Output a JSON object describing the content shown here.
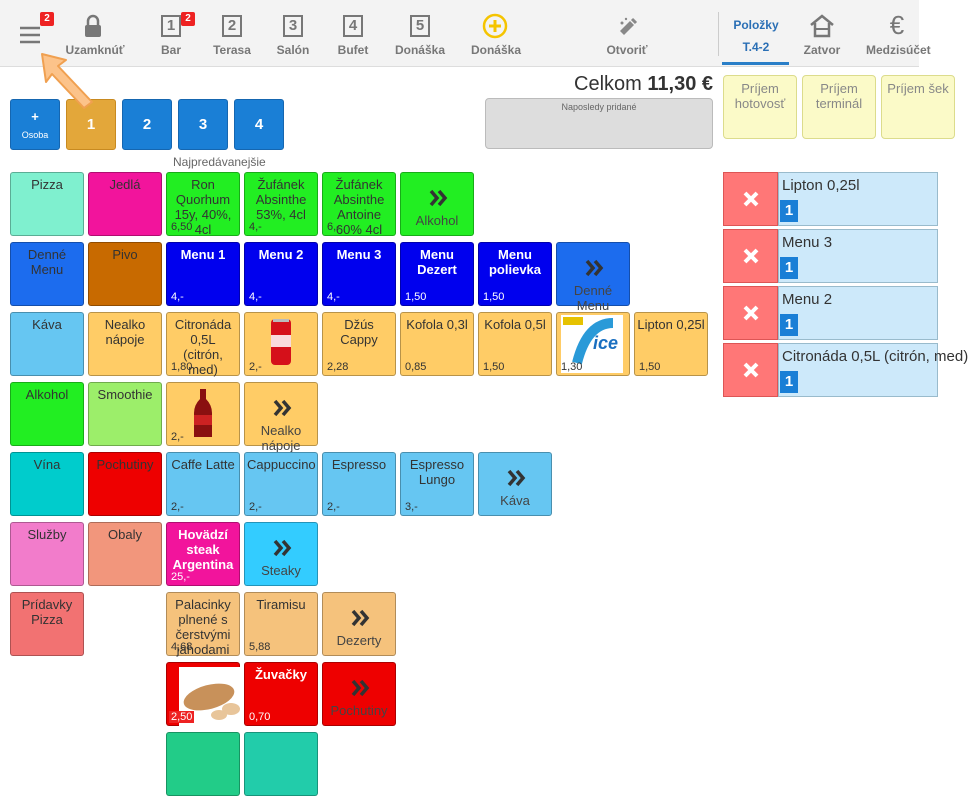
{
  "toolbar": {
    "menu_badge": "2",
    "lock": "Uzamknúť",
    "tables": [
      {
        "number": "1",
        "label": "Bar",
        "badge": "2"
      },
      {
        "number": "2",
        "label": "Terasa"
      },
      {
        "number": "3",
        "label": "Salón"
      },
      {
        "number": "4",
        "label": "Bufet"
      },
      {
        "number": "5",
        "label": "Donáška"
      }
    ],
    "add_delivery": "Donáška",
    "open": "Otvoriť",
    "tabs": [
      {
        "label": "Položky",
        "sub": "T.4-2"
      },
      {
        "label": "Zatvor"
      },
      {
        "label": "Medzisúčet"
      }
    ]
  },
  "total": {
    "label": "Celkom",
    "amount": "11,30 €"
  },
  "persons": {
    "add": "+",
    "add_label": "Osoba",
    "list": [
      "1",
      "2",
      "3",
      "4"
    ]
  },
  "last_added": "Naposledy pridané",
  "payments": [
    "Príjem hotovosť",
    "Príjem terminál",
    "Príjem šek"
  ],
  "section": "Najpredávanejšie",
  "grid": {
    "rows": [
      {
        "categories": [
          {
            "label": "Pizza",
            "color": "#7ff0cf"
          },
          {
            "label": "Jedlá",
            "color": "#f2149c"
          }
        ],
        "products": [
          {
            "label": "Ron Quorhum 15y, 40%, 4cl",
            "price": "6,50",
            "color": "#22ee22"
          },
          {
            "label": "Žufánek Absinthe 53%, 4cl",
            "price": "4,-",
            "color": "#22ee22"
          },
          {
            "label": "Žufánek Absinthe Antoine 60% 4cl",
            "price": "6,-",
            "color": "#22ee22"
          },
          {
            "label": "Alkohol",
            "color": "#22ee22",
            "more": true
          }
        ]
      },
      {
        "categories": [
          {
            "label": "Denné Menu",
            "color": "#1c6cee"
          },
          {
            "label": "Pivo",
            "color": "#c86a00"
          }
        ],
        "products": [
          {
            "label": "Menu 1",
            "price": "4,-",
            "color": "#0000ee",
            "bold": true
          },
          {
            "label": "Menu 2",
            "price": "4,-",
            "color": "#0000ee",
            "bold": true
          },
          {
            "label": "Menu 3",
            "price": "4,-",
            "color": "#0000ee",
            "bold": true
          },
          {
            "label": "Menu Dezert",
            "price": "1,50",
            "color": "#0000ee",
            "bold": true
          },
          {
            "label": "Menu polievka",
            "price": "1,50",
            "color": "#0000ee",
            "bold": true
          },
          {
            "label": "Denné Menu",
            "color": "#1c6cee",
            "more": true
          }
        ]
      },
      {
        "categories": [
          {
            "label": "Káva",
            "color": "#66c6f2"
          },
          {
            "label": "Nealko nápoje",
            "color": "#ffcc66"
          }
        ],
        "products": [
          {
            "label": "Citronáda 0,5L (citrón, med)",
            "price": "1,80",
            "color": "#ffcc66"
          },
          {
            "image": "cola",
            "price": "2,-",
            "color": "#ffcc66"
          },
          {
            "label": "Džús Cappy",
            "price": "2,28",
            "color": "#ffcc66"
          },
          {
            "label": "Kofola 0,3l",
            "price": "0,85",
            "color": "#ffcc66"
          },
          {
            "label": "Kofola 0,5l",
            "price": "1,50",
            "color": "#ffcc66"
          },
          {
            "image": "icetea",
            "price": "1,30",
            "color": "#ffcc66"
          },
          {
            "label": "Lipton 0,25l",
            "price": "1,50",
            "color": "#ffcc66"
          }
        ]
      },
      {
        "categories": [
          {
            "label": "Alkohol",
            "color": "#22ee22"
          },
          {
            "label": "Smoothie",
            "color": "#9cee6a"
          }
        ],
        "products": [
          {
            "image": "bottle",
            "price": "2,-",
            "color": "#ffcc66"
          },
          {
            "label": "Nealko nápoje",
            "color": "#ffcc66",
            "more": true
          }
        ]
      },
      {
        "categories": [
          {
            "label": "Vína",
            "color": "#00cccc"
          },
          {
            "label": "Pochutiny",
            "color": "#ee0000"
          }
        ],
        "products": [
          {
            "label": "Caffe Latte",
            "price": "2,-",
            "color": "#66c6f2"
          },
          {
            "label": "Cappuccino",
            "price": "2,-",
            "color": "#66c6f2"
          },
          {
            "label": "Espresso",
            "price": "2,-",
            "color": "#66c6f2"
          },
          {
            "label": "Espresso Lungo",
            "price": "3,-",
            "color": "#66c6f2"
          },
          {
            "label": "Káva",
            "color": "#66c6f2",
            "more": true
          }
        ]
      },
      {
        "categories": [
          {
            "label": "Služby",
            "color": "#f27ccb"
          },
          {
            "label": "Obaly",
            "color": "#f2967c"
          }
        ],
        "products": [
          {
            "label": "Hovädzí steak Argentina",
            "price": "25,-",
            "color": "#f2149c",
            "bold": true
          },
          {
            "label": "Steaky",
            "color": "#33ccff",
            "more": true
          }
        ]
      },
      {
        "categories": [
          {
            "label": "Prídavky Pizza",
            "color": "#f27272"
          }
        ],
        "products": [
          {
            "label": "Palacinky plnené s čerstvými jahodami",
            "price": "4,68",
            "color": "#f5c27c"
          },
          {
            "label": "Tiramisu",
            "price": "5,88",
            "color": "#f5c27c"
          },
          {
            "label": "Dezerty",
            "color": "#f5c27c",
            "more": true
          }
        ]
      },
      {
        "categories": [],
        "products": [
          {
            "image": "peanuts",
            "price": "2,50",
            "color": "#ee0000"
          },
          {
            "label": "Žuvačky",
            "price": "0,70",
            "color": "#ee0000",
            "bold": true
          },
          {
            "label": "Pochutiny",
            "color": "#ee0000",
            "more": true
          }
        ]
      }
    ]
  },
  "order": [
    {
      "name": "Lipton 0,25l",
      "qty": "1"
    },
    {
      "name": "Menu 3",
      "qty": "1"
    },
    {
      "name": "Menu 2",
      "qty": "1"
    },
    {
      "name": "Citronáda 0,5L (citrón, med)",
      "qty": "1"
    }
  ]
}
